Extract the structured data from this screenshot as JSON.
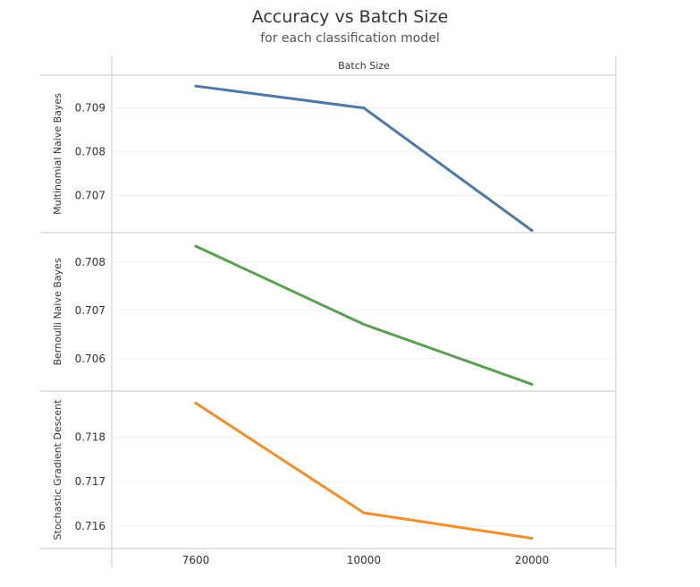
{
  "chart_data": {
    "type": "line",
    "title": "Accuracy vs Batch Size",
    "subtitle": "for each classification model",
    "column_header": "Batch Size",
    "categories": [
      "7600",
      "10000",
      "20000"
    ],
    "panels": [
      {
        "name": "Multinomial Naive Bayes",
        "color": "#4e79a7",
        "values": [
          0.7095,
          0.709,
          0.7062
        ],
        "ylim": [
          0.70615,
          0.70975
        ],
        "ticks": [
          0.707,
          0.708,
          0.709
        ],
        "tick_labels": [
          "0.707",
          "0.708",
          "0.709"
        ]
      },
      {
        "name": "Bernoulli Naive Bayes",
        "color": "#59a14f",
        "values": [
          0.70833,
          0.70671,
          0.70547
        ],
        "ylim": [
          0.70533,
          0.70861
        ],
        "ticks": [
          0.706,
          0.707,
          0.708
        ],
        "tick_labels": [
          "0.706",
          "0.707",
          "0.708"
        ]
      },
      {
        "name": "Stochastic Gradient Descent",
        "color": "#f28e2b",
        "values": [
          0.71876,
          0.7163,
          0.71573
        ],
        "ylim": [
          0.7155,
          0.71903
        ],
        "ticks": [
          0.716,
          0.717,
          0.718
        ],
        "tick_labels": [
          "0.716",
          "0.717",
          "0.718"
        ]
      }
    ],
    "grid": true,
    "legend": "none"
  }
}
